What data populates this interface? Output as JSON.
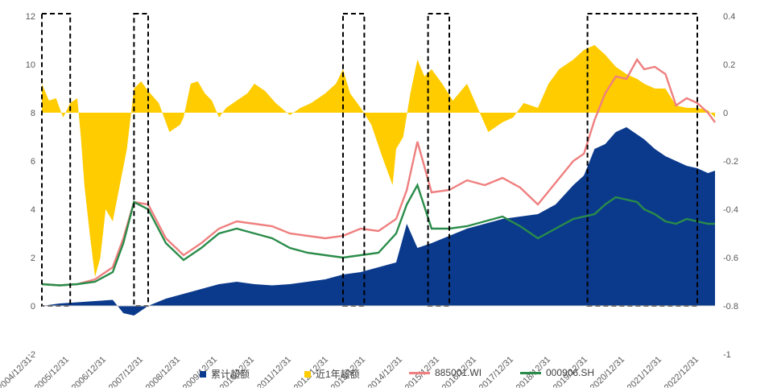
{
  "chart_data": {
    "type": "area+line",
    "title": "",
    "x_axis": {
      "tick_labels": [
        "2004/12/31",
        "2005/12/31",
        "2006/12/31",
        "2007/12/31",
        "2008/12/31",
        "2009/12/31",
        "2010/12/31",
        "2011/12/31",
        "2012/12/31",
        "2013/12/31",
        "2014/12/31",
        "2015/12/31",
        "2016/12/31",
        "2017/12/31",
        "2018/12/31",
        "2019/12/31",
        "2020/12/31",
        "2021/12/31",
        "2022/12/31"
      ]
    },
    "y_left": {
      "range": [
        -2,
        12
      ],
      "ticks": [
        "-2",
        "0",
        "2",
        "4",
        "6",
        "8",
        "10",
        "12"
      ]
    },
    "y_right": {
      "range": [
        -1,
        0.4
      ],
      "ticks": [
        "-1",
        "-0.8",
        "-0.6",
        "-0.4",
        "-0.2",
        "0",
        "0.2",
        "0.4"
      ]
    },
    "colors": {
      "cumulative": "#0b3a8c",
      "rolling": "#ffcc00",
      "index_wi": "#ef7f7f",
      "index_sh": "#2a8c4a",
      "highlight": "#000000"
    },
    "series": [
      {
        "name": "累计超额",
        "axis": "left",
        "style": "area",
        "x": [
          2005.0,
          2005.5,
          2006.0,
          2006.5,
          2007.0,
          2007.3,
          2007.6,
          2008.0,
          2008.5,
          2009.0,
          2009.5,
          2010.0,
          2010.5,
          2011.0,
          2011.5,
          2012.0,
          2012.5,
          2013.0,
          2013.5,
          2014.0,
          2014.5,
          2015.0,
          2015.3,
          2015.6,
          2016.0,
          2016.5,
          2017.0,
          2017.5,
          2018.0,
          2018.5,
          2019.0,
          2019.5,
          2020.0,
          2020.3,
          2020.6,
          2020.9,
          2021.2,
          2021.5,
          2021.8,
          2022.0,
          2022.3,
          2022.6,
          2022.9,
          2023.2,
          2023.5,
          2023.8,
          2024.0
        ],
        "y": [
          0.0,
          0.1,
          0.15,
          0.2,
          0.25,
          -0.3,
          -0.4,
          0.0,
          0.3,
          0.5,
          0.7,
          0.9,
          1.0,
          0.9,
          0.85,
          0.9,
          1.0,
          1.1,
          1.3,
          1.4,
          1.6,
          1.8,
          3.4,
          2.4,
          2.6,
          2.9,
          3.2,
          3.4,
          3.6,
          3.7,
          3.8,
          4.2,
          5.0,
          5.4,
          6.5,
          6.7,
          7.2,
          7.4,
          7.1,
          6.9,
          6.5,
          6.2,
          6.0,
          5.8,
          5.7,
          5.5,
          5.6
        ]
      },
      {
        "name": "近1年超额",
        "axis": "right",
        "style": "area",
        "x": [
          2005.0,
          2005.2,
          2005.4,
          2005.6,
          2005.8,
          2006.0,
          2006.1,
          2006.2,
          2006.35,
          2006.5,
          2006.65,
          2006.8,
          2007.0,
          2007.2,
          2007.4,
          2007.6,
          2007.8,
          2008.0,
          2008.3,
          2008.6,
          2008.9,
          2009.0,
          2009.2,
          2009.4,
          2009.6,
          2009.8,
          2010.0,
          2010.2,
          2010.4,
          2010.6,
          2010.8,
          2011.0,
          2011.3,
          2011.6,
          2012.0,
          2012.3,
          2012.6,
          2013.0,
          2013.3,
          2013.5,
          2013.7,
          2014.0,
          2014.3,
          2014.6,
          2014.9,
          2015.0,
          2015.2,
          2015.4,
          2015.6,
          2015.8,
          2016.0,
          2016.3,
          2016.6,
          2017.0,
          2017.3,
          2017.6,
          2018.0,
          2018.3,
          2018.6,
          2019.0,
          2019.3,
          2019.6,
          2020.0,
          2020.3,
          2020.6,
          2020.9,
          2021.2,
          2021.5,
          2021.8,
          2022.0,
          2022.3,
          2022.6,
          2022.9,
          2023.2,
          2023.5,
          2023.8,
          2024.0
        ],
        "y": [
          0.12,
          0.05,
          0.06,
          -0.02,
          0.04,
          0.06,
          -0.1,
          -0.3,
          -0.5,
          -0.68,
          -0.6,
          -0.4,
          -0.45,
          -0.3,
          -0.15,
          0.1,
          0.13,
          0.09,
          0.04,
          -0.08,
          -0.05,
          -0.02,
          0.12,
          0.13,
          0.08,
          0.05,
          -0.02,
          0.02,
          0.04,
          0.06,
          0.08,
          0.12,
          0.09,
          0.04,
          -0.01,
          0.02,
          0.04,
          0.08,
          0.12,
          0.18,
          0.08,
          0.02,
          -0.05,
          -0.18,
          -0.3,
          -0.15,
          -0.1,
          0.08,
          0.22,
          0.15,
          0.18,
          0.12,
          0.05,
          0.12,
          0.02,
          -0.08,
          -0.04,
          -0.02,
          0.04,
          0.02,
          0.12,
          0.18,
          0.22,
          0.26,
          0.28,
          0.24,
          0.19,
          0.16,
          0.14,
          0.12,
          0.1,
          0.1,
          0.03,
          0.02,
          0.02,
          0.01,
          -0.02
        ]
      },
      {
        "name": "885001.WI",
        "axis": "left",
        "style": "line",
        "x": [
          2005.0,
          2005.5,
          2006.0,
          2006.5,
          2007.0,
          2007.3,
          2007.6,
          2008.0,
          2008.5,
          2009.0,
          2009.5,
          2010.0,
          2010.5,
          2011.0,
          2011.5,
          2012.0,
          2012.5,
          2013.0,
          2013.5,
          2014.0,
          2014.5,
          2015.0,
          2015.3,
          2015.6,
          2016.0,
          2016.5,
          2017.0,
          2017.5,
          2018.0,
          2018.5,
          2019.0,
          2019.5,
          2020.0,
          2020.3,
          2020.6,
          2020.9,
          2021.2,
          2021.5,
          2021.8,
          2022.0,
          2022.3,
          2022.6,
          2022.9,
          2023.2,
          2023.5,
          2023.8,
          2024.0
        ],
        "y": [
          0.9,
          0.85,
          0.9,
          1.1,
          1.6,
          2.8,
          4.3,
          4.2,
          2.8,
          2.1,
          2.6,
          3.2,
          3.5,
          3.4,
          3.3,
          3.0,
          2.9,
          2.8,
          2.9,
          3.2,
          3.1,
          3.6,
          4.8,
          6.8,
          4.7,
          4.8,
          5.2,
          5.0,
          5.3,
          4.9,
          4.2,
          5.1,
          6.0,
          6.3,
          7.7,
          8.8,
          9.5,
          9.4,
          10.2,
          9.8,
          9.9,
          9.6,
          8.3,
          8.6,
          8.4,
          8.0,
          7.6
        ]
      },
      {
        "name": "000906.SH",
        "axis": "left",
        "style": "line",
        "x": [
          2005.0,
          2005.5,
          2006.0,
          2006.5,
          2007.0,
          2007.3,
          2007.6,
          2008.0,
          2008.5,
          2009.0,
          2009.5,
          2010.0,
          2010.5,
          2011.0,
          2011.5,
          2012.0,
          2012.5,
          2013.0,
          2013.5,
          2014.0,
          2014.5,
          2015.0,
          2015.3,
          2015.6,
          2016.0,
          2016.5,
          2017.0,
          2017.5,
          2018.0,
          2018.5,
          2019.0,
          2019.5,
          2020.0,
          2020.3,
          2020.6,
          2020.9,
          2021.2,
          2021.5,
          2021.8,
          2022.0,
          2022.3,
          2022.6,
          2022.9,
          2023.2,
          2023.5,
          2023.8,
          2024.0
        ],
        "y": [
          0.9,
          0.85,
          0.9,
          1.0,
          1.4,
          2.6,
          4.3,
          4.0,
          2.6,
          1.9,
          2.4,
          3.0,
          3.2,
          3.0,
          2.8,
          2.4,
          2.2,
          2.1,
          2.0,
          2.1,
          2.2,
          3.0,
          4.2,
          5.0,
          3.2,
          3.2,
          3.3,
          3.5,
          3.7,
          3.3,
          2.8,
          3.2,
          3.6,
          3.7,
          3.8,
          4.2,
          4.5,
          4.4,
          4.3,
          4.0,
          3.8,
          3.5,
          3.4,
          3.6,
          3.5,
          3.4,
          3.4
        ]
      }
    ],
    "highlight_boxes": [
      [
        2005.0,
        2005.8
      ],
      [
        2007.6,
        2008.0
      ],
      [
        2013.5,
        2014.1
      ],
      [
        2015.9,
        2016.5
      ],
      [
        2020.4,
        2023.5
      ]
    ]
  },
  "legend": {
    "cumulative": "累计超额",
    "rolling": "近1年超额",
    "index_wi": "885001.WI",
    "index_sh": "000906.SH"
  }
}
